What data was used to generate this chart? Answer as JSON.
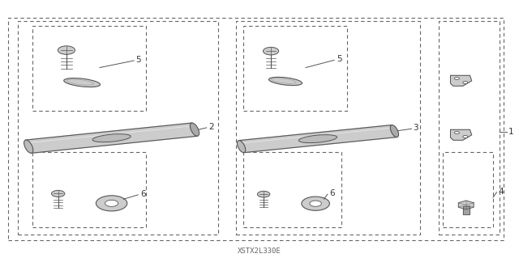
{
  "bg_color": "#ffffff",
  "label_code": "XSTX2L330E",
  "line_color": "#555555",
  "part_color": "#888888",
  "text_color": "#333333",
  "fill_light": "#cccccc",
  "fill_mid": "#bbbbbb",
  "fill_dark": "#aaaaaa"
}
